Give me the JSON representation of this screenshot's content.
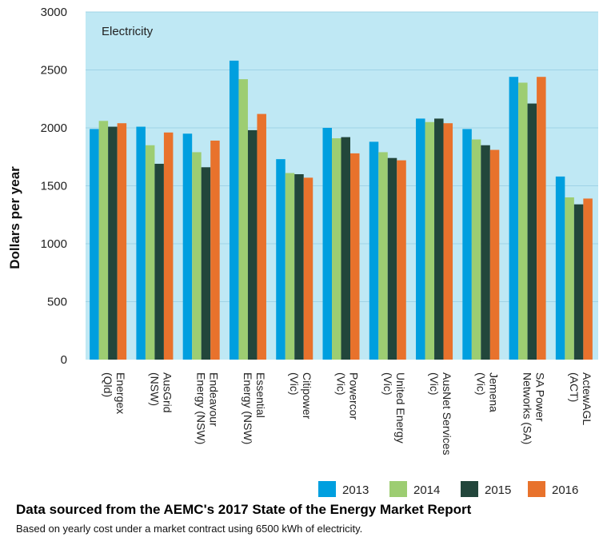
{
  "colors": {
    "plot_bg": "#bfe8f4",
    "grid": "#9fd3e6",
    "series": [
      "#009fdf",
      "#9dcd72",
      "#22463b",
      "#e8722c"
    ]
  },
  "chart_data": {
    "type": "bar",
    "title": "Electricity",
    "xlabel": "",
    "ylabel": "Dollars per year",
    "ylim": [
      0,
      3000
    ],
    "yticks": [
      0,
      500,
      1000,
      1500,
      2000,
      2500,
      3000
    ],
    "grid": true,
    "legend_position": "bottom-right",
    "categories": [
      [
        "Energex",
        "(Qld)"
      ],
      [
        "AusGrid",
        "(NSW)"
      ],
      [
        "Endeavour",
        "Energy (NSW)"
      ],
      [
        "Essential",
        "Energy (NSW)"
      ],
      [
        "Citipower",
        "(Vic)"
      ],
      [
        "Powercor",
        "(Vic)"
      ],
      [
        "United Energy",
        "(Vic)"
      ],
      [
        "AusNet Services",
        "(Vic)"
      ],
      [
        "Jemena",
        "(Vic)"
      ],
      [
        "SA Power",
        "Networks (SA)"
      ],
      [
        "ActewAGL",
        "(ACT)"
      ]
    ],
    "series": [
      {
        "name": "2013",
        "values": [
          1990,
          2010,
          1950,
          2580,
          1730,
          2000,
          1880,
          2080,
          1990,
          2440,
          1580
        ]
      },
      {
        "name": "2014",
        "values": [
          2060,
          1850,
          1790,
          2420,
          1610,
          1910,
          1790,
          2050,
          1900,
          2390,
          1400
        ]
      },
      {
        "name": "2015",
        "values": [
          2010,
          1690,
          1660,
          1980,
          1600,
          1920,
          1740,
          2080,
          1850,
          2210,
          1340
        ]
      },
      {
        "name": "2016",
        "values": [
          2040,
          1960,
          1890,
          2120,
          1570,
          1780,
          1720,
          2040,
          1810,
          2440,
          1390
        ]
      }
    ]
  },
  "footer": {
    "title": "Data sourced from the AEMC's 2017 State of the Energy Market Report",
    "note": "Based on yearly cost under a market contract using 6500 kWh of electricity."
  }
}
